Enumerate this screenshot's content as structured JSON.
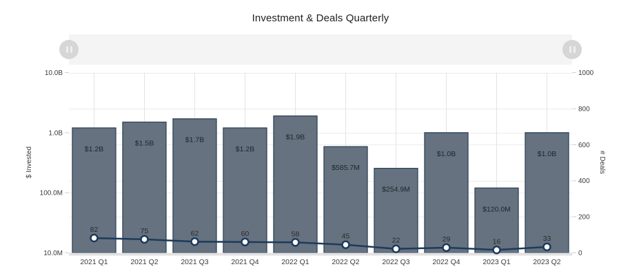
{
  "title": "Investment & Deals Quarterly",
  "slider": {
    "name": "zoom-range-selector",
    "handles": [
      "left",
      "right"
    ]
  },
  "colors": {
    "bar_fill": "#66727F",
    "bar_stroke": "#2E4358",
    "line": "#1C3A5C",
    "marker_fill": "#FFFFFF",
    "grid_h": "#EBEBEB",
    "grid_v": "#E3E3E3",
    "tick": "#CFCFCF",
    "baseline_band": "#E2E2E2",
    "axis_text": "#3A3A3A",
    "bar_label_text": "#20252E",
    "point_label_text": "#2B2B2B",
    "title_text": "#1F1F1F",
    "slider_track": "#F4F4F4",
    "slider_handle": "#D6D6D6"
  },
  "chart_data": {
    "type": "bar",
    "title": "Investment & Deals Quarterly",
    "categories": [
      "2021 Q1",
      "2021 Q2",
      "2021 Q3",
      "2021 Q4",
      "2022 Q1",
      "2022 Q2",
      "2022 Q3",
      "2022 Q4",
      "2023 Q1",
      "2023 Q2"
    ],
    "series": [
      {
        "name": "$ Invested",
        "type": "bar",
        "axis": "left",
        "values": [
          1200000000,
          1500000000,
          1700000000,
          1200000000,
          1900000000,
          585700000,
          254900000,
          1000000000,
          120000000,
          1000000000
        ],
        "labels": [
          "$1.2B",
          "$1.5B",
          "$1.7B",
          "$1.2B",
          "$1.9B",
          "$585.7M",
          "$254.9M",
          "$1.0B",
          "$120.0M",
          "$1.0B"
        ]
      },
      {
        "name": "# Deals",
        "type": "line",
        "axis": "right",
        "values": [
          82,
          75,
          62,
          60,
          58,
          45,
          22,
          29,
          16,
          33
        ],
        "labels": [
          "82",
          "75",
          "62",
          "60",
          "58",
          "45",
          "22",
          "29",
          "16",
          "33"
        ]
      }
    ],
    "left_axis": {
      "label": "$ Invested",
      "scale": "log",
      "min": 10000000,
      "max": 10000000000,
      "ticks": [
        10000000000,
        1000000000,
        100000000,
        10000000
      ],
      "tick_labels": [
        "10.0B",
        "1.0B",
        "100.0M",
        "10.0M"
      ]
    },
    "right_axis": {
      "label": "# Deals",
      "scale": "linear",
      "min": 0,
      "max": 1000,
      "ticks": [
        1000,
        800,
        600,
        400,
        200,
        0
      ],
      "tick_labels": [
        "1000",
        "800",
        "600",
        "400",
        "200",
        "0"
      ]
    },
    "grid": true,
    "legend": "none"
  }
}
